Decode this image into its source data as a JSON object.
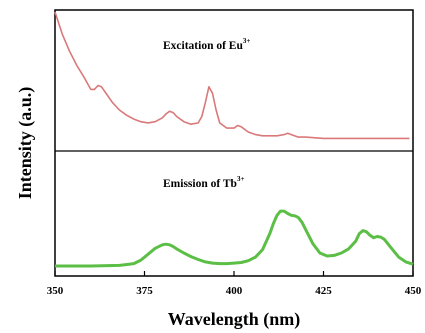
{
  "chart_data": {
    "type": "line",
    "xlabel": "Wavelength (nm)",
    "ylabel": "Intensity (a.u.)",
    "xlim": [
      350,
      450
    ],
    "xticks": [
      "350",
      "375",
      "400",
      "425",
      "450"
    ],
    "grid": false,
    "panels": [
      {
        "name": "excitation",
        "label_main": "Excitation of Eu",
        "label_sup": "3+",
        "color": "#d9797a",
        "x": [
          350,
          352,
          354,
          356,
          358,
          360,
          361,
          362,
          363,
          364,
          366,
          368,
          370,
          372,
          374,
          376,
          378,
          380,
          381,
          382,
          383,
          384,
          386,
          388,
          390,
          391,
          392,
          393,
          394,
          395,
          396,
          398,
          400,
          401,
          402,
          404,
          406,
          408,
          410,
          412,
          414,
          415,
          416,
          418,
          420,
          425,
          430,
          435,
          440,
          445,
          449
        ],
        "y": [
          1.0,
          0.83,
          0.7,
          0.59,
          0.5,
          0.4,
          0.4,
          0.43,
          0.42,
          0.38,
          0.3,
          0.24,
          0.2,
          0.17,
          0.15,
          0.14,
          0.15,
          0.18,
          0.21,
          0.23,
          0.22,
          0.19,
          0.15,
          0.13,
          0.14,
          0.19,
          0.3,
          0.42,
          0.37,
          0.24,
          0.14,
          0.1,
          0.1,
          0.12,
          0.11,
          0.07,
          0.05,
          0.04,
          0.04,
          0.04,
          0.05,
          0.06,
          0.05,
          0.03,
          0.03,
          0.02,
          0.02,
          0.02,
          0.02,
          0.02,
          0.02
        ]
      },
      {
        "name": "emission",
        "label_main": "Emission of Tb",
        "label_sup": "3+",
        "color": "#5bbf46",
        "x": [
          350,
          360,
          368,
          372,
          374,
          376,
          378,
          380,
          381,
          382,
          383,
          384,
          386,
          388,
          390,
          392,
          394,
          396,
          398,
          400,
          402,
          404,
          406,
          408,
          410,
          411,
          412,
          413,
          414,
          415,
          416,
          417,
          418,
          419,
          420,
          422,
          424,
          426,
          428,
          430,
          432,
          434,
          435,
          436,
          437,
          438,
          439,
          440,
          441,
          442,
          444,
          446,
          448,
          450
        ],
        "y": [
          0.0,
          0.0,
          0.01,
          0.04,
          0.1,
          0.2,
          0.3,
          0.36,
          0.37,
          0.36,
          0.33,
          0.29,
          0.22,
          0.16,
          0.11,
          0.07,
          0.05,
          0.04,
          0.04,
          0.05,
          0.06,
          0.09,
          0.15,
          0.28,
          0.55,
          0.72,
          0.86,
          0.93,
          0.93,
          0.89,
          0.86,
          0.85,
          0.82,
          0.74,
          0.62,
          0.38,
          0.22,
          0.17,
          0.18,
          0.22,
          0.29,
          0.42,
          0.55,
          0.6,
          0.58,
          0.52,
          0.48,
          0.5,
          0.49,
          0.45,
          0.3,
          0.15,
          0.07,
          0.03
        ]
      }
    ]
  }
}
